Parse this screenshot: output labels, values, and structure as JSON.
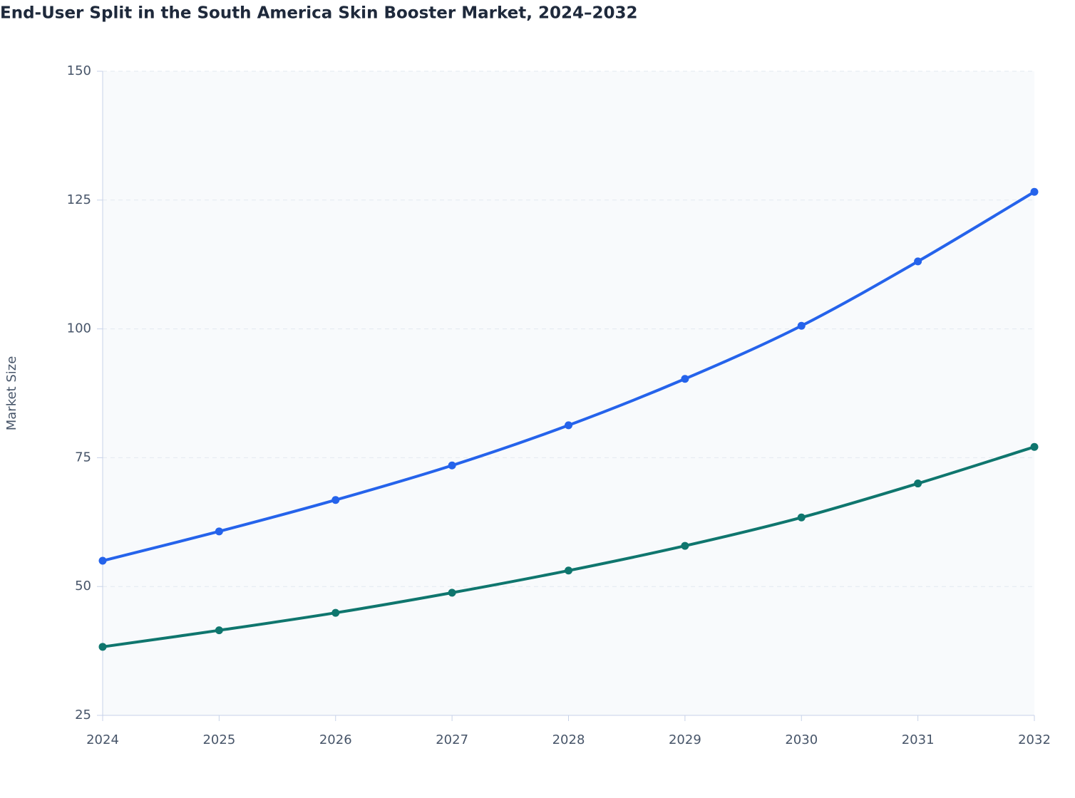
{
  "chart_data": {
    "type": "line",
    "title": "End-User Split in the South America Skin Booster Market, 2024–2032",
    "y_label": "Market Size",
    "categories": [
      "2024",
      "2025",
      "2026",
      "2027",
      "2028",
      "2029",
      "2030",
      "2031",
      "2032"
    ],
    "series": [
      {
        "color": "#2563eb",
        "values": [
          55.0,
          60.7,
          66.8,
          73.5,
          81.3,
          90.3,
          100.6,
          113.1,
          126.6
        ]
      },
      {
        "color": "#0f766e",
        "values": [
          38.3,
          41.5,
          44.9,
          48.8,
          53.1,
          57.9,
          63.4,
          70.0,
          77.1
        ]
      }
    ],
    "ylim": [
      25,
      150
    ],
    "yticks": [
      25,
      50,
      75,
      100,
      125,
      150
    ],
    "grid": true
  }
}
